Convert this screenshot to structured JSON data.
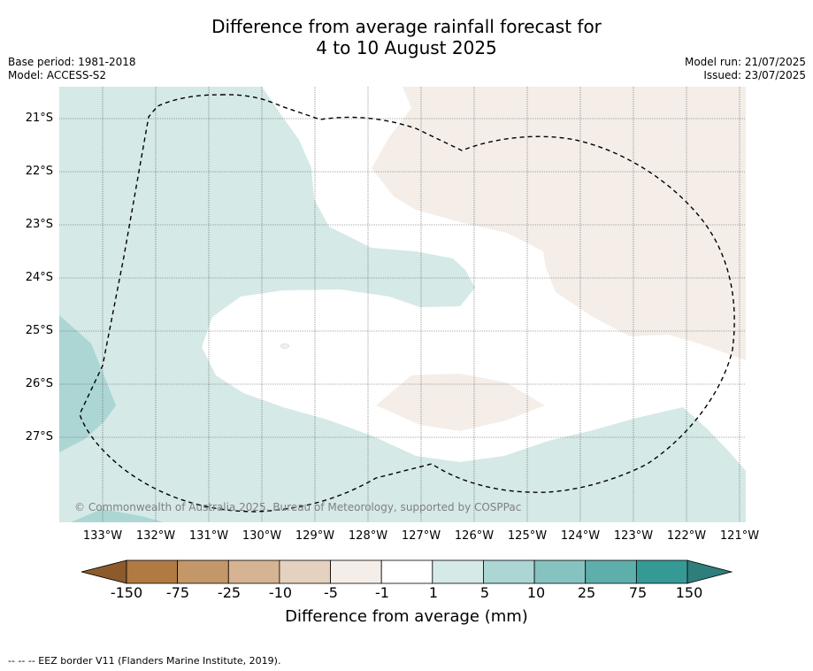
{
  "title": {
    "line1": "Difference from average rainfall forecast for",
    "line2": "4 to 10 August 2025"
  },
  "meta_left": {
    "base_period": "Base period: 1981-2018",
    "model": "Model: ACCESS-S2"
  },
  "meta_right": {
    "model_run": "Model run: 21/07/2025",
    "issued": "Issued: 23/07/2025"
  },
  "map": {
    "latitudes": [
      "21°S",
      "22°S",
      "23°S",
      "24°S",
      "25°S",
      "26°S",
      "27°S"
    ],
    "longitudes": [
      "133°W",
      "132°W",
      "131°W",
      "130°W",
      "129°W",
      "128°W",
      "127°W",
      "126°W",
      "125°W",
      "124°W",
      "123°W",
      "122°W",
      "121°W"
    ],
    "copyright": "© Commonwealth of Australia 2025, Bureau of Meteorology, supported by COSPPac"
  },
  "colorbar": {
    "ticks": [
      "-150",
      "-75",
      "-25",
      "-10",
      "-5",
      "-1",
      "1",
      "5",
      "10",
      "25",
      "75",
      "150"
    ],
    "colors": [
      "#8c5a2b",
      "#b07a42",
      "#c49769",
      "#d6b392",
      "#e5d1bf",
      "#f5eee8",
      "#ffffff",
      "#d5e9e7",
      "#acd6d4",
      "#86c3c0",
      "#5eafab",
      "#359a96",
      "#2e7f7c"
    ],
    "title": "Difference from average (mm)"
  },
  "footnote": "--  --  -- EEZ border V11 (Flanders Marine Institute, 2019)."
}
